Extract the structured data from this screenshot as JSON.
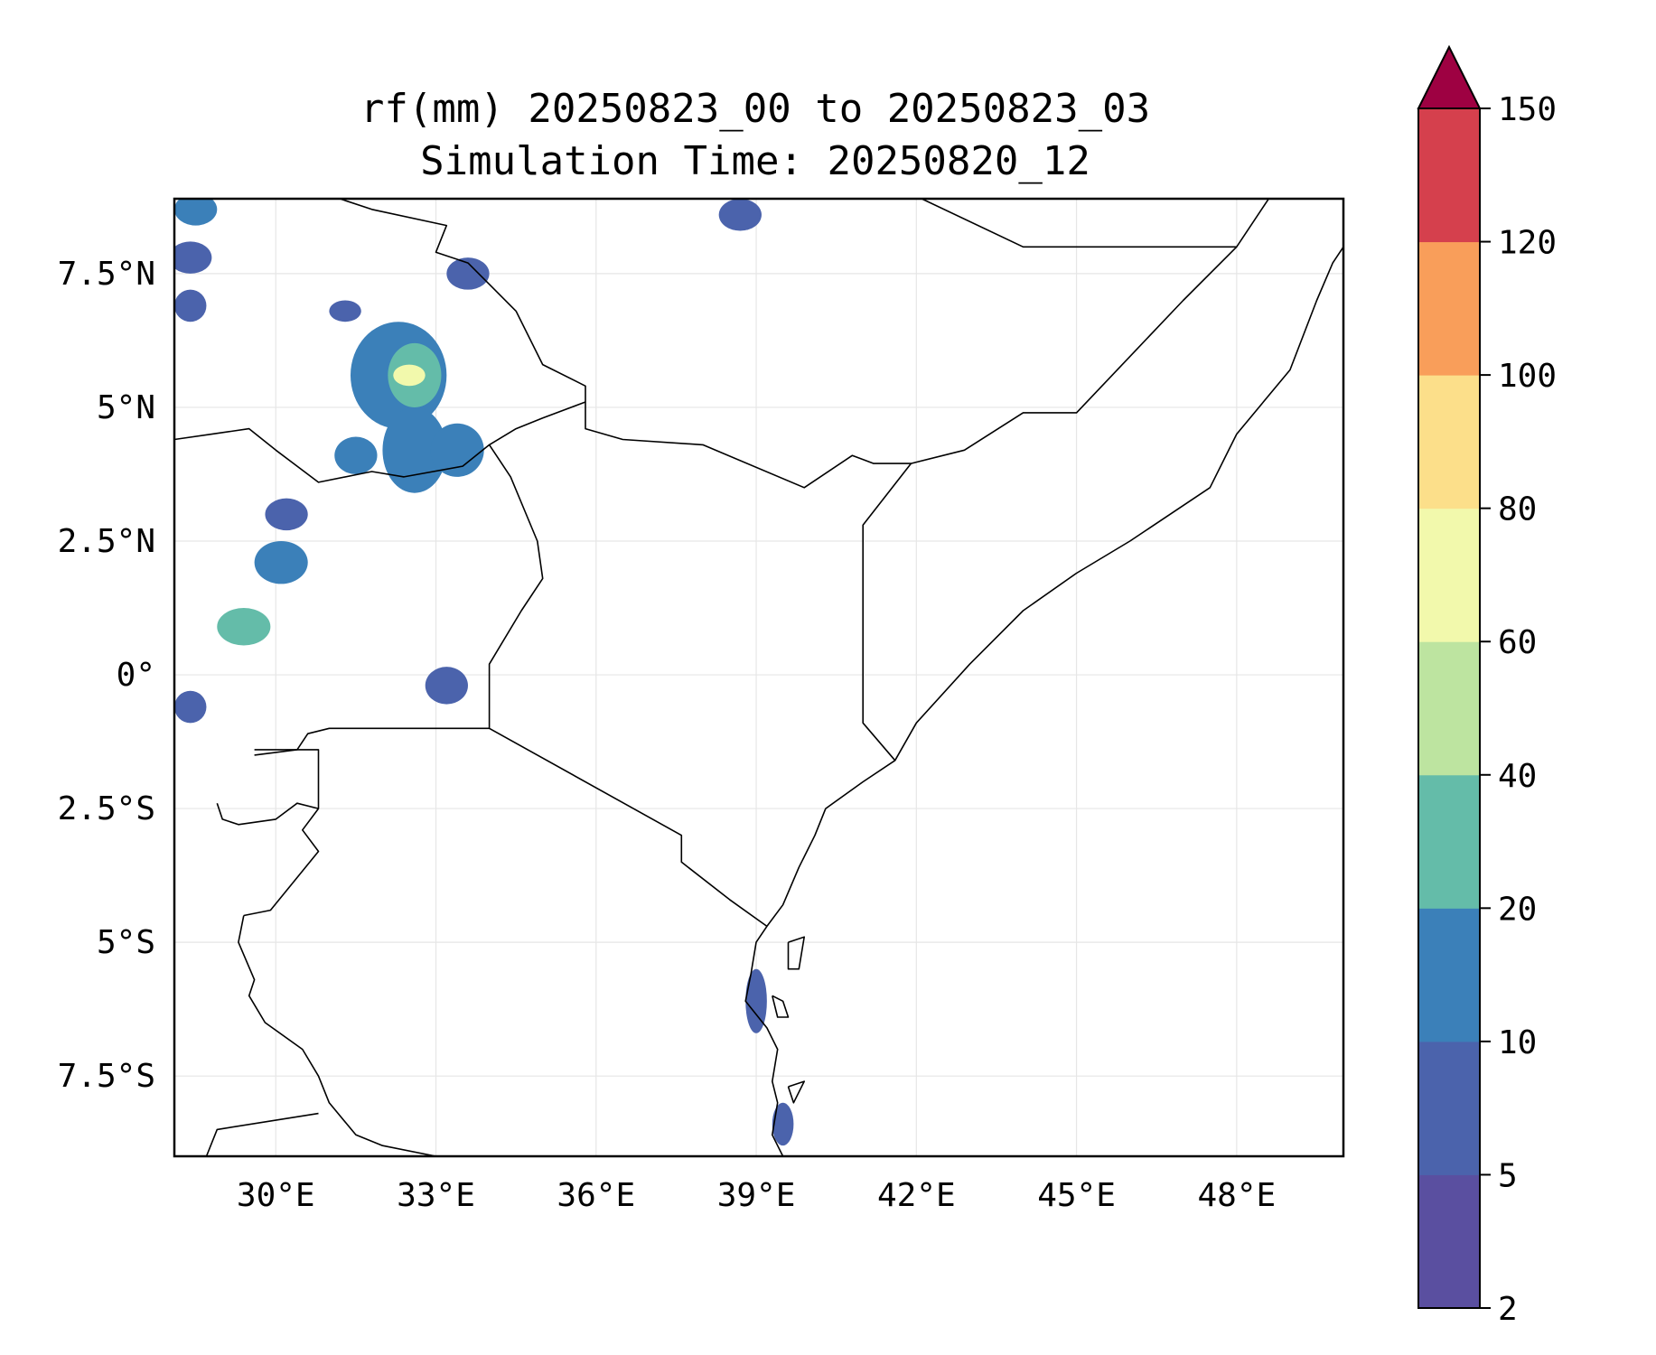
{
  "title": {
    "line1": "rf(mm) 20250823_00 to 20250823_03",
    "line2": "Simulation Time: 20250820_12"
  },
  "map": {
    "lon_range": [
      28.1,
      50.0
    ],
    "lat_range": [
      -9.0,
      8.9
    ],
    "grid": true,
    "x_ticks": [
      {
        "value": 30,
        "label": "30°E"
      },
      {
        "value": 33,
        "label": "33°E"
      },
      {
        "value": 36,
        "label": "36°E"
      },
      {
        "value": 39,
        "label": "39°E"
      },
      {
        "value": 42,
        "label": "42°E"
      },
      {
        "value": 45,
        "label": "45°E"
      },
      {
        "value": 48,
        "label": "48°E"
      }
    ],
    "y_ticks": [
      {
        "value": 7.5,
        "label": "7.5°N"
      },
      {
        "value": 5,
        "label": "5°N"
      },
      {
        "value": 2.5,
        "label": "2.5°N"
      },
      {
        "value": 0,
        "label": "0°"
      },
      {
        "value": -2.5,
        "label": "2.5°S"
      },
      {
        "value": -5,
        "label": "5°S"
      },
      {
        "value": -7.5,
        "label": "7.5°S"
      }
    ],
    "borders": [
      [
        [
          31.2,
          8.9
        ],
        [
          31.8,
          8.7
        ],
        [
          33.2,
          8.4
        ],
        [
          33.0,
          7.9
        ],
        [
          33.6,
          7.7
        ],
        [
          34.0,
          7.3
        ],
        [
          34.5,
          6.8
        ],
        [
          35.0,
          5.8
        ],
        [
          35.8,
          5.4
        ],
        [
          35.8,
          4.6
        ],
        [
          36.5,
          4.4
        ],
        [
          38.0,
          4.3
        ],
        [
          39.9,
          3.5
        ],
        [
          40.8,
          4.1
        ],
        [
          41.2,
          3.95
        ],
        [
          41.9,
          3.95
        ],
        [
          42.9,
          4.2
        ],
        [
          44.0,
          4.9
        ],
        [
          45.0,
          4.9
        ],
        [
          47.0,
          7.0
        ],
        [
          48.0,
          8.0
        ],
        [
          48.6,
          8.9
        ]
      ],
      [
        [
          42.1,
          8.9
        ],
        [
          44.0,
          8.0
        ],
        [
          46.9,
          8.0
        ],
        [
          48.0,
          8.0
        ]
      ],
      [
        [
          28.1,
          4.4
        ],
        [
          28.8,
          4.5
        ],
        [
          29.5,
          4.6
        ],
        [
          30.0,
          4.2
        ],
        [
          30.8,
          3.6
        ],
        [
          31.8,
          3.8
        ],
        [
          32.4,
          3.7
        ],
        [
          33.5,
          3.9
        ],
        [
          34.0,
          4.3
        ],
        [
          34.5,
          4.6
        ],
        [
          35.0,
          4.8
        ],
        [
          35.8,
          5.1
        ]
      ],
      [
        [
          34.0,
          4.3
        ],
        [
          34.4,
          3.7
        ],
        [
          34.9,
          2.5
        ],
        [
          35.0,
          1.8
        ],
        [
          34.6,
          1.2
        ],
        [
          34.0,
          0.2
        ],
        [
          34.0,
          -0.5
        ],
        [
          34.0,
          -1.0
        ],
        [
          37.6,
          -3.0
        ],
        [
          37.6,
          -3.5
        ],
        [
          38.5,
          -4.2
        ],
        [
          39.2,
          -4.7
        ]
      ],
      [
        [
          34.0,
          -1.0
        ],
        [
          31.0,
          -1.0
        ],
        [
          30.6,
          -1.1
        ],
        [
          30.4,
          -1.4
        ],
        [
          29.6,
          -1.5
        ]
      ],
      [
        [
          29.6,
          -1.4
        ],
        [
          30.8,
          -1.4
        ],
        [
          30.8,
          -2.5
        ],
        [
          30.5,
          -2.9
        ],
        [
          30.8,
          -3.3
        ],
        [
          29.9,
          -4.4
        ],
        [
          29.4,
          -4.5
        ]
      ],
      [
        [
          28.9,
          -2.4
        ],
        [
          29.0,
          -2.7
        ],
        [
          29.3,
          -2.8
        ],
        [
          30.0,
          -2.7
        ],
        [
          30.4,
          -2.4
        ],
        [
          30.8,
          -2.5
        ]
      ],
      [
        [
          29.4,
          -4.5
        ],
        [
          29.3,
          -5.0
        ],
        [
          29.6,
          -5.7
        ],
        [
          29.5,
          -6.0
        ],
        [
          29.8,
          -6.5
        ],
        [
          30.5,
          -7.0
        ],
        [
          30.8,
          -7.5
        ],
        [
          31.0,
          -8.0
        ],
        [
          31.5,
          -8.6
        ],
        [
          32.0,
          -8.8
        ],
        [
          33.0,
          -9.0
        ]
      ],
      [
        [
          28.7,
          -9.0
        ],
        [
          28.9,
          -8.5
        ],
        [
          30.8,
          -8.2
        ]
      ],
      [
        [
          41.9,
          3.95
        ],
        [
          41.0,
          2.8
        ],
        [
          41.0,
          1.5
        ],
        [
          41.0,
          -0.9
        ],
        [
          41.6,
          -1.6
        ]
      ],
      [
        [
          50.0,
          8.0
        ],
        [
          49.8,
          7.7
        ],
        [
          49.5,
          7.0
        ],
        [
          49.0,
          5.7
        ],
        [
          48.0,
          4.5
        ],
        [
          47.5,
          3.5
        ],
        [
          46.0,
          2.5
        ],
        [
          45.0,
          1.9
        ],
        [
          44.0,
          1.2
        ],
        [
          43.0,
          0.2
        ],
        [
          42.0,
          -0.9
        ],
        [
          41.6,
          -1.6
        ],
        [
          41.0,
          -2.0
        ],
        [
          40.3,
          -2.5
        ],
        [
          40.1,
          -3.0
        ],
        [
          39.8,
          -3.6
        ],
        [
          39.5,
          -4.3
        ],
        [
          39.2,
          -4.7
        ],
        [
          39.0,
          -5.0
        ],
        [
          38.9,
          -5.6
        ],
        [
          38.8,
          -6.1
        ],
        [
          39.2,
          -6.6
        ],
        [
          39.4,
          -7.0
        ],
        [
          39.3,
          -7.6
        ],
        [
          39.4,
          -8.0
        ],
        [
          39.3,
          -8.6
        ],
        [
          39.5,
          -9.0
        ]
      ],
      [
        [
          39.6,
          -5.0
        ],
        [
          39.9,
          -4.9
        ],
        [
          39.8,
          -5.5
        ],
        [
          39.6,
          -5.5
        ],
        [
          39.6,
          -5.0
        ]
      ],
      [
        [
          39.3,
          -6.0
        ],
        [
          39.5,
          -6.1
        ],
        [
          39.6,
          -6.4
        ],
        [
          39.4,
          -6.4
        ],
        [
          39.3,
          -6.0
        ]
      ],
      [
        [
          39.6,
          -7.7
        ],
        [
          39.9,
          -7.6
        ],
        [
          39.7,
          -8.0
        ],
        [
          39.6,
          -7.7
        ]
      ]
    ],
    "rain_blobs": [
      {
        "lon": 32.3,
        "lat": 5.6,
        "rx": 0.9,
        "ry": 1.0,
        "level": 2
      },
      {
        "lon": 32.6,
        "lat": 5.6,
        "rx": 0.5,
        "ry": 0.6,
        "level": 3
      },
      {
        "lon": 32.5,
        "lat": 5.6,
        "rx": 0.3,
        "ry": 0.2,
        "level": 5
      },
      {
        "lon": 32.6,
        "lat": 4.2,
        "rx": 0.6,
        "ry": 0.8,
        "level": 2
      },
      {
        "lon": 33.4,
        "lat": 4.2,
        "rx": 0.5,
        "ry": 0.5,
        "level": 2
      },
      {
        "lon": 31.5,
        "lat": 4.1,
        "rx": 0.4,
        "ry": 0.35,
        "level": 2
      },
      {
        "lon": 30.2,
        "lat": 3.0,
        "rx": 0.4,
        "ry": 0.3,
        "level": 1
      },
      {
        "lon": 30.1,
        "lat": 2.1,
        "rx": 0.5,
        "ry": 0.4,
        "level": 2
      },
      {
        "lon": 29.4,
        "lat": 0.9,
        "rx": 0.5,
        "ry": 0.35,
        "level": 3
      },
      {
        "lon": 28.4,
        "lat": 7.8,
        "rx": 0.4,
        "ry": 0.3,
        "level": 1
      },
      {
        "lon": 28.5,
        "lat": 8.7,
        "rx": 0.4,
        "ry": 0.3,
        "level": 2
      },
      {
        "lon": 28.4,
        "lat": 6.9,
        "rx": 0.3,
        "ry": 0.3,
        "level": 1
      },
      {
        "lon": 31.3,
        "lat": 6.8,
        "rx": 0.3,
        "ry": 0.2,
        "level": 1
      },
      {
        "lon": 38.7,
        "lat": 8.6,
        "rx": 0.4,
        "ry": 0.3,
        "level": 1
      },
      {
        "lon": 33.2,
        "lat": -0.2,
        "rx": 0.4,
        "ry": 0.35,
        "level": 1
      },
      {
        "lon": 28.4,
        "lat": -0.6,
        "rx": 0.3,
        "ry": 0.3,
        "level": 1
      },
      {
        "lon": 39.0,
        "lat": -6.1,
        "rx": 0.2,
        "ry": 0.6,
        "level": 1
      },
      {
        "lon": 39.5,
        "lat": -8.4,
        "rx": 0.2,
        "ry": 0.4,
        "level": 1
      },
      {
        "lon": 33.6,
        "lat": 7.5,
        "rx": 0.4,
        "ry": 0.3,
        "level": 1
      }
    ]
  },
  "colorbar": {
    "levels": [
      "2",
      "5",
      "10",
      "20",
      "40",
      "60",
      "80",
      "100",
      "120",
      "150"
    ],
    "colors": [
      "#5a4fa0",
      "#4b63ac",
      "#3b80b9",
      "#64bca9",
      "#bde4a0",
      "#f2f9ac",
      "#fcdf8a",
      "#f99e5a",
      "#d5404d"
    ],
    "extend_color": "#9e0142",
    "extend": "max"
  }
}
